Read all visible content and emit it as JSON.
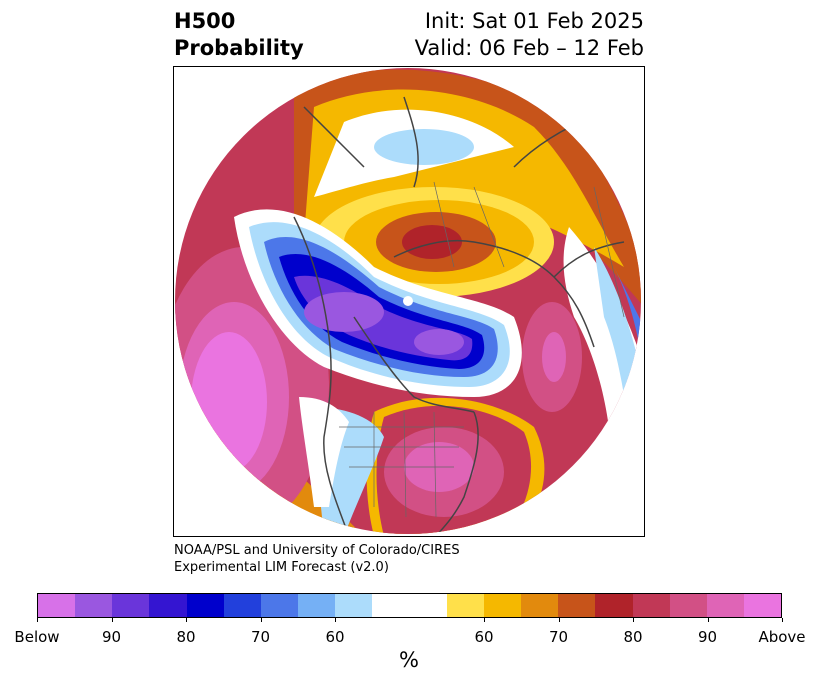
{
  "title": {
    "left_line1": "H500",
    "left_line2": "Probability",
    "right_line1": "Init: Sat 01 Feb 2025",
    "right_line2": "Valid: 06 Feb – 12 Feb"
  },
  "credit": {
    "line1": "NOAA/PSL and University of Colorado/CIRES",
    "line2": "Experimental LIM Forecast (v2.0)"
  },
  "colorbar": {
    "unit": "%",
    "colors": [
      "#d771e8",
      "#9a57e0",
      "#6a35da",
      "#3415d1",
      "#0000cc",
      "#2240dc",
      "#4c77e9",
      "#75b0f5",
      "#acdcfb",
      "#ffffff",
      "#ffffff",
      "#ffe04a",
      "#f5b800",
      "#e28a0d",
      "#c7541a",
      "#b0232a",
      "#c13856",
      "#d25085",
      "#df64b6",
      "#ea74e0"
    ],
    "ticks": [
      "Below",
      "90",
      "80",
      "70",
      "60",
      "60",
      "70",
      "80",
      "90",
      "Above"
    ]
  },
  "map": {
    "projection": "north-polar-stereographic",
    "field": "500 hPa height probability",
    "colors": {
      "deep_above": "#ea74e0",
      "above_90": "#d25085",
      "above_80": "#c13856",
      "above_75": "#b0232a",
      "above_70": "#c7541a",
      "above_65": "#e28a0d",
      "above_60": "#f5b800",
      "above_55": "#ffe04a",
      "neutral": "#ffffff",
      "below_55": "#acdcfb",
      "below_60": "#75b0f5",
      "below_65": "#4c77e9",
      "below_70": "#2240dc",
      "below_75": "#0000cc",
      "below_80": "#3415d1",
      "below_85": "#6a35da",
      "below_90": "#9a57e0",
      "deep_below": "#d771e8",
      "coast": "#444444"
    }
  }
}
